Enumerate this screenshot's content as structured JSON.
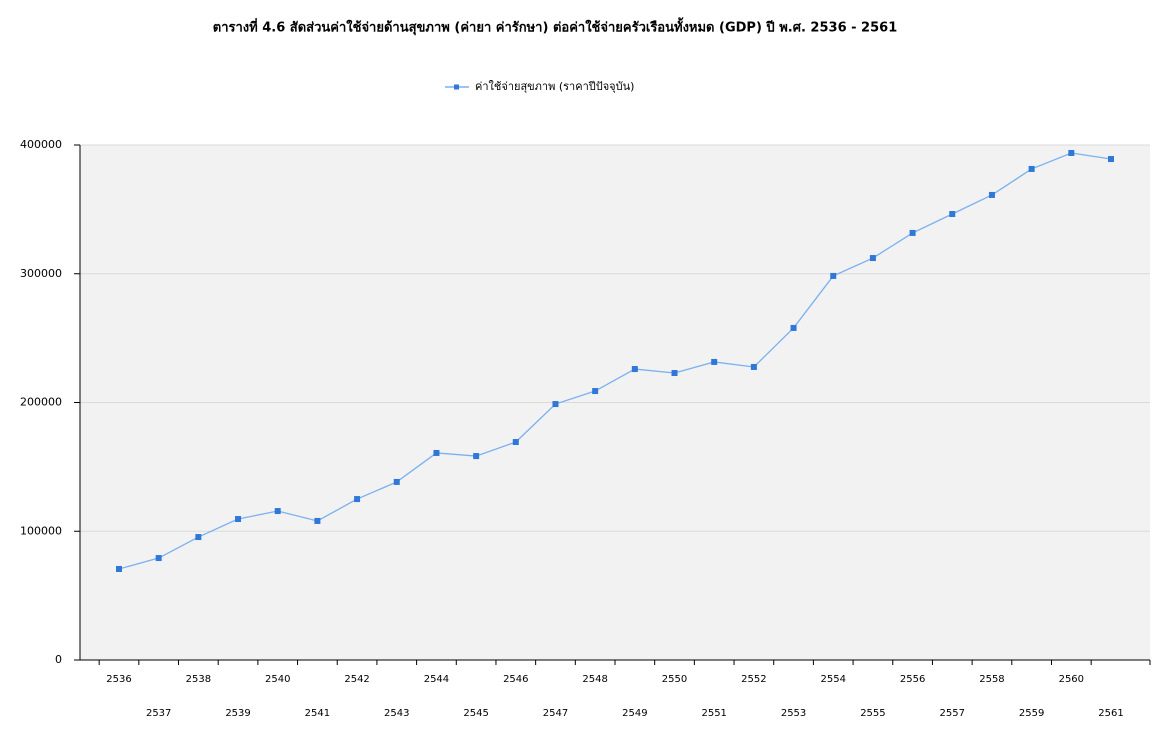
{
  "chart_data": {
    "type": "line",
    "title": "ตารางที่ 4.6 สัดส่วนค่าใช้จ่ายด้านสุขภาพ (ค่ายา ค่ารักษา) ต่อค่าใช้จ่ายครัวเรือนทั้งหมด (GDP) ปี พ.ศ. 2536 - 2561",
    "categories": [
      "2536",
      "2537",
      "2538",
      "2539",
      "2540",
      "2541",
      "2542",
      "2543",
      "2544",
      "2545",
      "2546",
      "2547",
      "2548",
      "2549",
      "2550",
      "2551",
      "2552",
      "2553",
      "2554",
      "2555",
      "2556",
      "2557",
      "2558",
      "2559",
      "2560",
      "2561"
    ],
    "series": [
      {
        "name": "ค่าใช้จ่ายสุขภาพ (ราคาปีปัจจุบัน)",
        "color": "#7ab0f0",
        "marker_color": "#2f78d8",
        "values": [
          70700,
          79200,
          95500,
          109500,
          115700,
          108000,
          125000,
          138300,
          160800,
          158400,
          169300,
          198800,
          208900,
          226000,
          222900,
          231500,
          227600,
          257900,
          298300,
          312200,
          331700,
          346400,
          361200,
          381400,
          393800,
          389100
        ]
      }
    ],
    "ylim": [
      0,
      400000
    ],
    "yticks": [
      0,
      100000,
      200000,
      300000,
      400000
    ],
    "grid": true
  }
}
